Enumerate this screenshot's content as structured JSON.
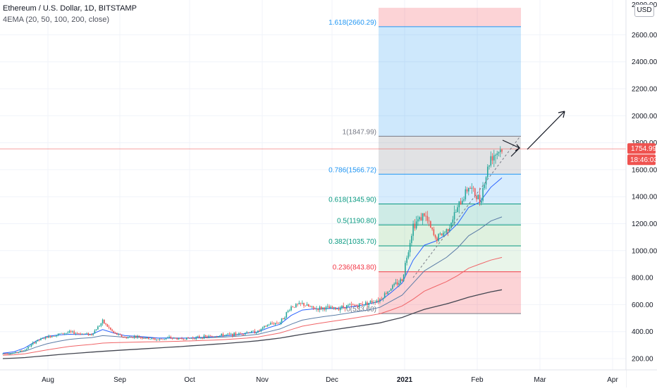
{
  "header": {
    "title": "Ethereum / U.S. Dollar, 1D, BITSTAMP",
    "indicator": "4EMA (20, 50, 100, 200, close)",
    "currency": "USD"
  },
  "price_scale": {
    "price_tag": "1754.99",
    "countdown": "18:46:03",
    "top_partial_label": "2800.00"
  },
  "colors": {
    "up": "#26a69a",
    "down": "#ef5350",
    "ema20": "#2962ff",
    "ema50": "#5b7ca6",
    "ema100": "#f06467",
    "ema200": "#434651",
    "price_line": "#ef5350",
    "fib_red": "#f23645",
    "fib_blue": "#2196f3",
    "fib_green": "#089981",
    "fib_grey": "#787b86"
  },
  "chart_data": {
    "type": "candlestick",
    "title": "Ethereum / U.S. Dollar, 1D, BITSTAMP",
    "indicator": "4EMA (20, 50, 100, 200, close)",
    "x_tick_labels": [
      "Aug",
      "Sep",
      "Oct",
      "Nov",
      "Dec",
      "2021",
      "Feb",
      "Mar",
      "Apr"
    ],
    "y_tick_labels": [
      "200.00",
      "400.00",
      "600.00",
      "800.00",
      "1000.00",
      "1200.00",
      "1400.00",
      "1600.00",
      "1800.00",
      "2000.00",
      "2200.00",
      "2400.00",
      "2600.00"
    ],
    "ylim": [
      140,
      2800
    ],
    "current_price": 1754.99,
    "fib_levels": [
      {
        "ratio": "1.618",
        "price": 2660.29,
        "label": "1.618(2660.29)"
      },
      {
        "ratio": "1",
        "price": 1847.99,
        "label": "1(1847.99)"
      },
      {
        "ratio": "0.786",
        "price": 1566.72,
        "label": "0.786(1566.72)"
      },
      {
        "ratio": "0.618",
        "price": 1345.9,
        "label": "0.618(1345.90)"
      },
      {
        "ratio": "0.5",
        "price": 1190.8,
        "label": "0.5(1190.80)"
      },
      {
        "ratio": "0.382",
        "price": 1035.7,
        "label": "0.382(1035.70)"
      },
      {
        "ratio": "0.236",
        "price": 843.8,
        "label": "0.236(843.80)"
      },
      {
        "ratio": "0",
        "price": 533.6,
        "label": "0(533.60)"
      }
    ],
    "candles_weekly_close": [
      236,
      240,
      266,
      330,
      360,
      380,
      395,
      385,
      380,
      475,
      390,
      355,
      365,
      350,
      340,
      355,
      345,
      352,
      360,
      365,
      375,
      380,
      395,
      400,
      455,
      470,
      585,
      605,
      570,
      575,
      570,
      590,
      595,
      615,
      640,
      725,
      785,
      1190,
      1270,
      1085,
      1150,
      1310,
      1480,
      1370,
      1700,
      1755
    ],
    "ema20_weekly": [
      240,
      250,
      280,
      330,
      365,
      375,
      380,
      378,
      380,
      415,
      390,
      370,
      366,
      360,
      352,
      353,
      352,
      353,
      357,
      362,
      368,
      375,
      388,
      398,
      430,
      455,
      520,
      560,
      568,
      570,
      572,
      580,
      590,
      605,
      625,
      690,
      760,
      930,
      1040,
      1070,
      1120,
      1200,
      1320,
      1360,
      1470,
      1540
    ],
    "ema50_weekly": [
      235,
      240,
      255,
      285,
      310,
      328,
      342,
      350,
      355,
      370,
      365,
      358,
      357,
      355,
      352,
      352,
      351,
      352,
      354,
      356,
      360,
      365,
      372,
      380,
      400,
      420,
      455,
      485,
      500,
      512,
      522,
      535,
      548,
      562,
      580,
      625,
      670,
      760,
      850,
      900,
      950,
      1020,
      1110,
      1160,
      1220,
      1250
    ],
    "ema100_weekly": [
      225,
      228,
      236,
      250,
      265,
      278,
      290,
      298,
      305,
      315,
      318,
      320,
      322,
      324,
      325,
      327,
      329,
      331,
      334,
      337,
      341,
      346,
      352,
      360,
      375,
      390,
      415,
      440,
      455,
      468,
      480,
      492,
      505,
      518,
      532,
      560,
      590,
      640,
      700,
      735,
      770,
      815,
      870,
      900,
      930,
      950
    ],
    "ema200_weekly": [
      200,
      203,
      208,
      215,
      222,
      229,
      236,
      242,
      248,
      254,
      259,
      264,
      269,
      274,
      279,
      284,
      289,
      295,
      300,
      306,
      312,
      318,
      325,
      332,
      342,
      352,
      366,
      380,
      392,
      404,
      416,
      428,
      440,
      452,
      465,
      485,
      505,
      535,
      565,
      585,
      605,
      630,
      655,
      675,
      695,
      710
    ]
  }
}
